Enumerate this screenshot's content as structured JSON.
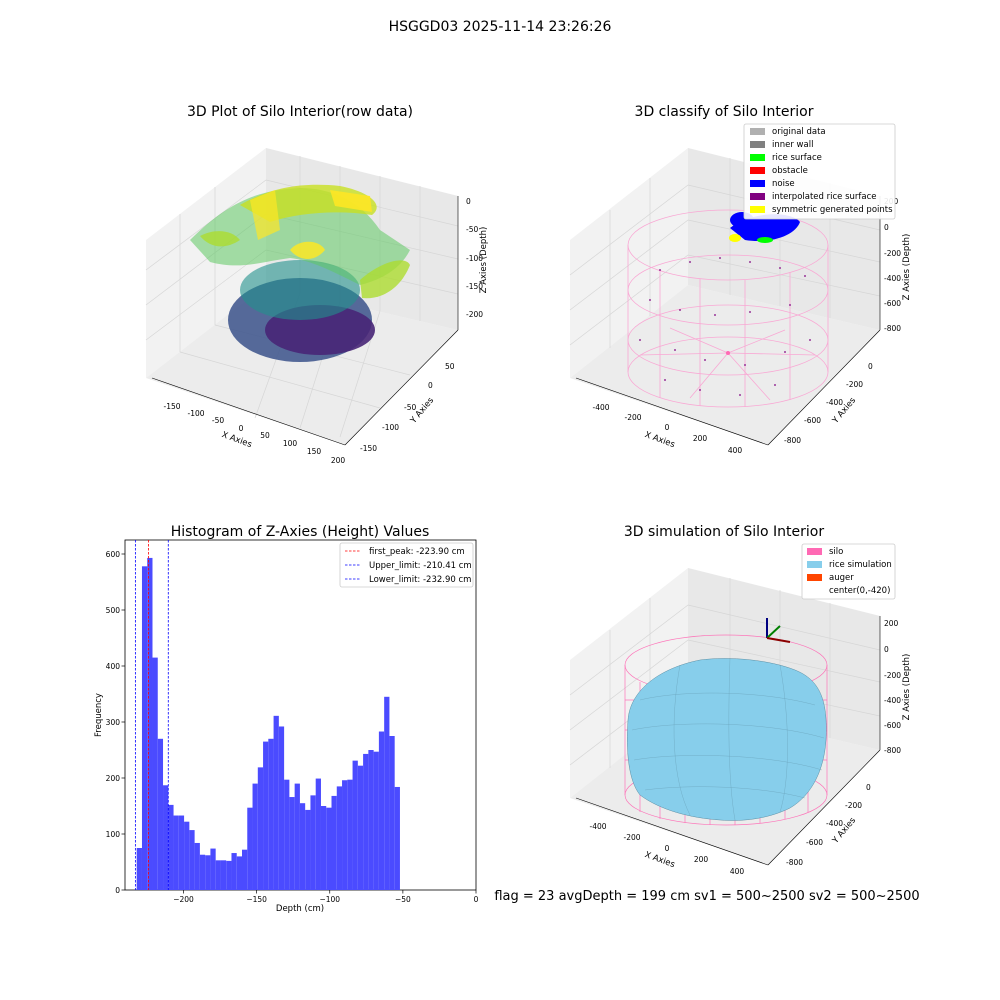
{
  "figure": {
    "suptitle": "HSGGD03 2025-11-14 23:26:26",
    "footer": "flag = 23   avgDepth = 199 cm  sv1 = 500~2500  sv2 = 500~2500"
  },
  "panel1": {
    "title": "3D Plot of Silo Interior(row data)",
    "xlabel": "X Axies",
    "ylabel": "Y Axies",
    "zlabel": "Z Axies (Depth)",
    "xticks": [
      "-150",
      "-100",
      "-50",
      "0",
      "50",
      "100",
      "150",
      "200"
    ],
    "yticks": [
      "50",
      "0",
      "-50",
      "-100",
      "-150"
    ],
    "zticks": [
      "0",
      "-50",
      "-100",
      "-150",
      "-200"
    ],
    "colormap": "viridis"
  },
  "panel2": {
    "title": "3D classify of Silo Interior",
    "xlabel": "X Axies",
    "ylabel": "Y Axies",
    "zlabel": "Z Axies (Depth)",
    "xticks": [
      "-400",
      "-200",
      "0",
      "200",
      "400"
    ],
    "yticks": [
      "0",
      "-200",
      "-400",
      "-600",
      "-800"
    ],
    "zticks": [
      "200",
      "0",
      "-200",
      "-400",
      "-600",
      "-800"
    ],
    "legend": [
      {
        "label": "original data",
        "color": "#b0b0b0"
      },
      {
        "label": "inner wall",
        "color": "#808080"
      },
      {
        "label": "rice surface",
        "color": "#00ff00"
      },
      {
        "label": "obstacle",
        "color": "#ff0000"
      },
      {
        "label": "noise",
        "color": "#0000ff"
      },
      {
        "label": "interpolated rice surface",
        "color": "#800080"
      },
      {
        "label": "symmetric generated points",
        "color": "#ffff00"
      }
    ]
  },
  "panel4": {
    "title": "3D simulation of Silo Interior",
    "xlabel": "X Axies",
    "ylabel": "Y Axies",
    "zlabel": "Z Axies (Depth)",
    "xticks": [
      "-400",
      "-200",
      "0",
      "200",
      "400"
    ],
    "yticks": [
      "0",
      "-200",
      "-400",
      "-600",
      "-800"
    ],
    "zticks": [
      "200",
      "0",
      "-200",
      "-400",
      "-600",
      "-800"
    ],
    "legend": [
      {
        "label": "silo",
        "color": "#ff69b4"
      },
      {
        "label": "rice simulation",
        "color": "#87ceeb"
      },
      {
        "label": "auger",
        "color": "#ff4500"
      },
      {
        "label": "center(0,-420)",
        "color": "none"
      }
    ],
    "silo_color": "#ff69b4",
    "rice_color": "#87ceeb"
  },
  "chart_data": {
    "type": "bar",
    "title": "Histogram of Z-Axies (Height) Values",
    "xlabel": "Depth (cm)",
    "ylabel": "Frequency",
    "xlim": [
      -240,
      0
    ],
    "ylim": [
      0,
      625
    ],
    "xticks": [
      -200,
      -150,
      -100,
      -50,
      0
    ],
    "xtick_labels": [
      "−200",
      "−150",
      "−100",
      "−50",
      "0"
    ],
    "yticks": [
      0,
      100,
      200,
      300,
      400,
      500,
      600
    ],
    "bar_color": "#4b4bff",
    "bin_start": -232.0,
    "bin_width": 3.6,
    "values": [
      75,
      578,
      593,
      415,
      270,
      187,
      152,
      133,
      133,
      122,
      107,
      84,
      63,
      62,
      74,
      53,
      53,
      52,
      66,
      60,
      72,
      147,
      190,
      219,
      265,
      270,
      311,
      292,
      197,
      166,
      190,
      155,
      143,
      169,
      199,
      150,
      147,
      168,
      185,
      196,
      197,
      231,
      222,
      243,
      250,
      247,
      283,
      345,
      275,
      184
    ],
    "vlines": [
      {
        "x": -223.9,
        "color": "#ff0000",
        "label": "first_peak: -223.90 cm"
      },
      {
        "x": -210.41,
        "color": "#0000ff",
        "label": "Upper_limit: -210.41 cm"
      },
      {
        "x": -232.9,
        "color": "#0000ff",
        "label": "Lower_limit: -232.90 cm"
      }
    ],
    "legend_position": "top-right"
  }
}
